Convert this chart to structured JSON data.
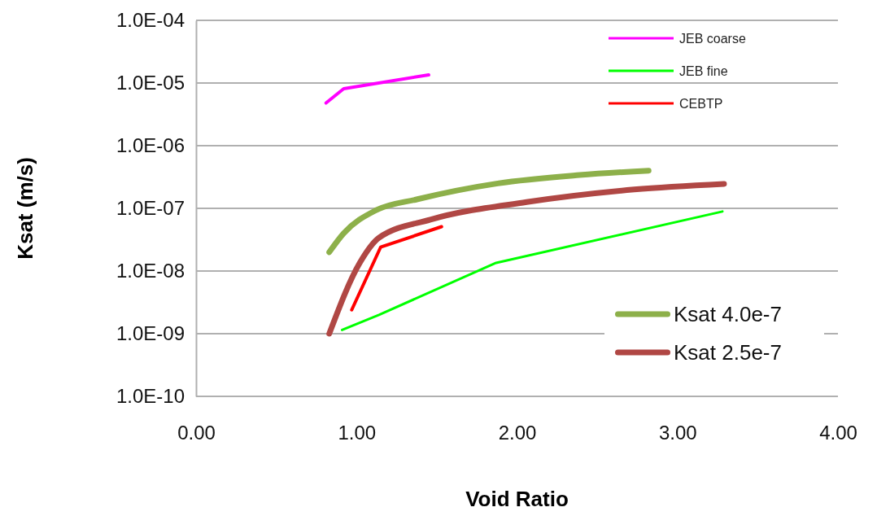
{
  "chart_data": {
    "type": "line",
    "xlabel": "Void Ratio",
    "ylabel": "Ksat (m/s)",
    "log": "y",
    "grid": "y",
    "legend": "right",
    "line_style": "solid",
    "marker": "none",
    "xlim": [
      0,
      4
    ],
    "xticks": [
      {
        "value": 0,
        "label": "0.00"
      },
      {
        "value": 1,
        "label": "1.00"
      },
      {
        "value": 2,
        "label": "2.00"
      },
      {
        "value": 3,
        "label": "3.00"
      },
      {
        "value": 4,
        "label": "4.00"
      }
    ],
    "ylim": [
      1e-10,
      0.0001
    ],
    "yticks": [
      {
        "value": 1e-10,
        "label": "1.0E-10"
      },
      {
        "value": 1e-09,
        "label": "1.0E-09"
      },
      {
        "value": 1e-08,
        "label": "1.0E-08"
      },
      {
        "value": 1e-07,
        "label": "1.0E-07"
      },
      {
        "value": 1e-06,
        "label": "1.0E-06"
      },
      {
        "value": 1e-05,
        "label": "1.0E-05"
      },
      {
        "value": 0.0001,
        "label": "1.0E-04"
      }
    ],
    "series": [
      {
        "name": "JEB coarse",
        "color": "#ff00ff",
        "x": [
          0.81,
          0.92,
          1.45
        ],
        "values": [
          4.8e-06,
          8.1e-06,
          1.35e-05
        ]
      },
      {
        "name": "JEB fine",
        "color": "#00ff00",
        "x": [
          0.91,
          1.14,
          1.87,
          3.28
        ],
        "values": [
          1.15e-09,
          2e-09,
          1.35e-08,
          8.9e-08
        ]
      },
      {
        "name": "CEBTP",
        "color": "#ff0000",
        "x": [
          0.97,
          1.15,
          1.53
        ],
        "values": [
          2.4e-09,
          2.4e-08,
          5.1e-08
        ]
      },
      {
        "name": "Ksat 4.0e-7",
        "color": "#8db04a",
        "x": [
          0.83,
          0.92,
          1.12,
          1.38,
          1.88,
          2.39,
          2.82
        ],
        "values": [
          2e-08,
          4e-08,
          9.3e-08,
          1.4e-07,
          2.5e-07,
          3.4e-07,
          4e-07
        ]
      },
      {
        "name": "Ksat 2.5e-7",
        "color": "#b04744",
        "x": [
          0.83,
          1.02,
          1.14,
          1.46,
          2.06,
          2.73,
          3.29
        ],
        "values": [
          1e-09,
          1.35e-08,
          3.4e-08,
          6.6e-08,
          1.26e-07,
          2e-07,
          2.46e-07
        ]
      }
    ]
  }
}
